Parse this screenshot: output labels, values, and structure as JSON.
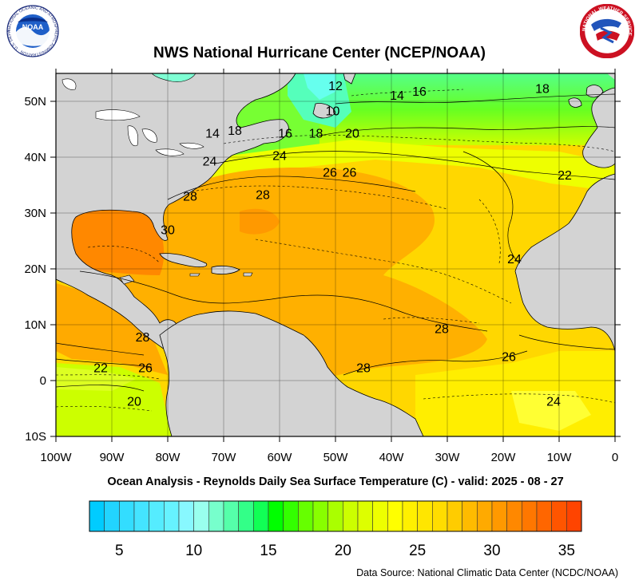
{
  "header": {
    "title": "NWS National Hurricane Center (NCEP/NOAA)",
    "left_logo_text": "NOAA",
    "left_logo_ring": "NATIONAL OCEANIC AND ATMOSPHERIC ADMINISTRATION · U.S. DEPARTMENT OF COMMERCE",
    "right_logo_ring": "NATIONAL WEATHER SERVICE"
  },
  "map": {
    "x_ticks": [
      {
        "value": -100,
        "label": "100W"
      },
      {
        "value": -90,
        "label": "90W"
      },
      {
        "value": -80,
        "label": "80W"
      },
      {
        "value": -70,
        "label": "70W"
      },
      {
        "value": -60,
        "label": "60W"
      },
      {
        "value": -50,
        "label": "50W"
      },
      {
        "value": -40,
        "label": "40W"
      },
      {
        "value": -30,
        "label": "30W"
      },
      {
        "value": -20,
        "label": "20W"
      },
      {
        "value": -10,
        "label": "10W"
      },
      {
        "value": 0,
        "label": "0"
      }
    ],
    "y_ticks": [
      {
        "value": 50,
        "label": "50N"
      },
      {
        "value": 40,
        "label": "40N"
      },
      {
        "value": 30,
        "label": "30N"
      },
      {
        "value": 20,
        "label": "20N"
      },
      {
        "value": 10,
        "label": "10N"
      },
      {
        "value": 0,
        "label": "0"
      },
      {
        "value": -10,
        "label": "10S"
      }
    ],
    "lon_range": [
      -100,
      0
    ],
    "lat_range": [
      -10,
      55
    ],
    "contour_labels": [
      {
        "lon": -50,
        "lat": 52,
        "text": "12"
      },
      {
        "lon": -39,
        "lat": 50.3,
        "text": "14"
      },
      {
        "lon": -35,
        "lat": 51,
        "text": "16"
      },
      {
        "lon": -13,
        "lat": 51.5,
        "text": "18"
      },
      {
        "lon": -50.5,
        "lat": 47.5,
        "text": "10"
      },
      {
        "lon": -72,
        "lat": 43.5,
        "text": "14"
      },
      {
        "lon": -68,
        "lat": 44,
        "text": "18"
      },
      {
        "lon": -59,
        "lat": 43.5,
        "text": "16"
      },
      {
        "lon": -53.5,
        "lat": 43.5,
        "text": "18"
      },
      {
        "lon": -47,
        "lat": 43.5,
        "text": "20"
      },
      {
        "lon": -72.5,
        "lat": 38.5,
        "text": "24"
      },
      {
        "lon": -60,
        "lat": 39.5,
        "text": "24"
      },
      {
        "lon": -51,
        "lat": 36.5,
        "text": "26"
      },
      {
        "lon": -47.5,
        "lat": 36.5,
        "text": "26"
      },
      {
        "lon": -9,
        "lat": 36,
        "text": "22"
      },
      {
        "lon": -76,
        "lat": 32.2,
        "text": "28"
      },
      {
        "lon": -63,
        "lat": 32.5,
        "text": "28"
      },
      {
        "lon": -80,
        "lat": 26.2,
        "text": "30"
      },
      {
        "lon": -18,
        "lat": 21,
        "text": "24"
      },
      {
        "lon": -31,
        "lat": 8.5,
        "text": "28"
      },
      {
        "lon": -84.5,
        "lat": 7,
        "text": "28"
      },
      {
        "lon": -92,
        "lat": 1.5,
        "text": "22"
      },
      {
        "lon": -84,
        "lat": 1.5,
        "text": "26"
      },
      {
        "lon": -45,
        "lat": 1.5,
        "text": "28"
      },
      {
        "lon": -19,
        "lat": 3.5,
        "text": "26"
      },
      {
        "lon": -11,
        "lat": -4.5,
        "text": "24"
      },
      {
        "lon": -86,
        "lat": -4.5,
        "text": "20"
      }
    ]
  },
  "colors": {
    "land": "#d3d3d3",
    "ocean_warm": "#ff9900",
    "ocean_mid": "#ffcc00",
    "ocean_cool": "#00ee00"
  },
  "footer": {
    "subtitle": "Ocean Analysis - Reynolds Daily Sea Surface Temperature (C) - valid: 2025 - 08 - 27",
    "source": "Data Source: National Climatic Data Center (NCDC/NOAA)"
  },
  "colorbar": {
    "min": 3,
    "max": 36,
    "step": 1,
    "colors": [
      "#00ccff",
      "#22d4ff",
      "#33ddff",
      "#44e4ff",
      "#55ecff",
      "#66f2ff",
      "#88f8ff",
      "#99ffee",
      "#77ffcc",
      "#55ffaa",
      "#33ff88",
      "#11ff55",
      "#00ff00",
      "#33ff00",
      "#66ff00",
      "#88ff00",
      "#aaff00",
      "#ccff00",
      "#ddff00",
      "#eeff00",
      "#ffff00",
      "#fff000",
      "#ffe600",
      "#ffdd00",
      "#ffcc00",
      "#ffbb00",
      "#ffaa00",
      "#ff9900",
      "#ff8800",
      "#ff7700",
      "#ff6600",
      "#ff5500",
      "#ff4400"
    ],
    "labels": [
      {
        "value": 5,
        "label": "5"
      },
      {
        "value": 10,
        "label": "10"
      },
      {
        "value": 15,
        "label": "15"
      },
      {
        "value": 20,
        "label": "20"
      },
      {
        "value": 25,
        "label": "25"
      },
      {
        "value": 30,
        "label": "30"
      },
      {
        "value": 35,
        "label": "35"
      }
    ]
  }
}
